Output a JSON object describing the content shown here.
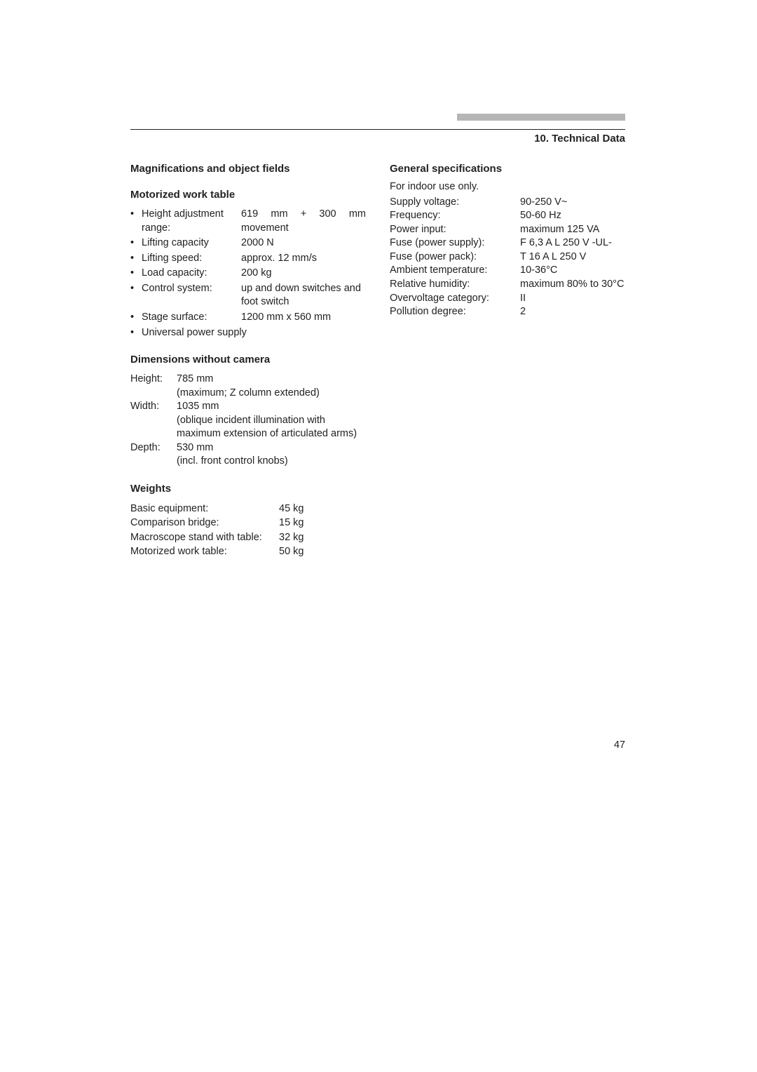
{
  "chapter_title": "10. Technical Data",
  "page_number": "47",
  "left": {
    "heading_mag": "Magnifications and object fields",
    "heading_table": "Motorized work table",
    "work_table": [
      {
        "label": "Height adjustment range:",
        "value": "619 mm + 300 mm movement"
      },
      {
        "label": "Lifting capacity",
        "value": "2000 N"
      },
      {
        "label": "Lifting speed:",
        "value": "approx. 12 mm/s"
      },
      {
        "label": "Load capacity:",
        "value": "200 kg"
      },
      {
        "label": "Control system:",
        "value": "up and down switches and foot switch"
      },
      {
        "label": "Stage surface:",
        "value": "1200 mm x 560 mm"
      },
      {
        "label": "Universal power supply",
        "value": ""
      }
    ],
    "heading_dims": "Dimensions without camera",
    "dims": [
      {
        "label": "Height:",
        "value": "785 mm",
        "note": "(maximum; Z column extended)"
      },
      {
        "label": "Width:",
        "value": "1035 mm",
        "note": "(oblique incident illumination with maximum extension of articulated arms)"
      },
      {
        "label": "Depth:",
        "value": "530 mm",
        "note": "(incl. front control knobs)"
      }
    ],
    "heading_weights": "Weights",
    "weights": [
      {
        "label": "Basic equipment:",
        "value": "45 kg"
      },
      {
        "label": "Comparison bridge:",
        "value": "15 kg"
      },
      {
        "label": "Macroscope stand with table:",
        "value": "32 kg"
      },
      {
        "label": "Motorized work table:",
        "value": "50 kg"
      }
    ]
  },
  "right": {
    "heading": "General specifications",
    "indoor_note": "For indoor use only.",
    "rows": [
      {
        "label": "Supply voltage:",
        "value": "90-250 V~"
      },
      {
        "label": "Frequency:",
        "value": "50-60 Hz"
      },
      {
        "label": "Power input:",
        "value": "maximum 125 VA"
      },
      {
        "label": "Fuse (power supply):",
        "value": "F 6,3 A L 250 V -UL-"
      },
      {
        "label": "Fuse (power pack):",
        "value": "T 16 A L 250 V"
      },
      {
        "label": "Ambient temperature:",
        "value": "10-36°C"
      },
      {
        "label": "Relative humidity:",
        "value": "maximum 80% to 30°C"
      },
      {
        "label": "Overvoltage category:",
        "value": "II"
      },
      {
        "label": "Pollution degree:",
        "value": "2"
      }
    ]
  }
}
